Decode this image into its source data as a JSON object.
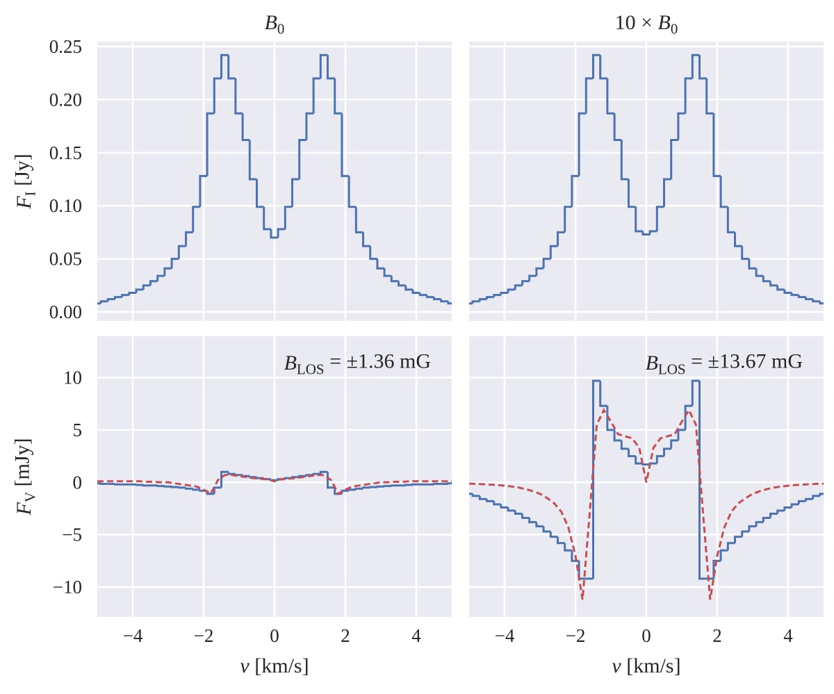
{
  "chart_data": [
    {
      "type": "line",
      "title": [
        {
          "text": "B",
          "italic": true
        },
        {
          "text": "0",
          "sub": true
        }
      ],
      "ylabel": [
        {
          "text": "F",
          "italic": true
        },
        {
          "text": "I",
          "sub": true
        },
        {
          "text": " [Jy]"
        }
      ],
      "x": [
        -5,
        -4.8,
        -4.6,
        -4.4,
        -4.2,
        -4,
        -3.8,
        -3.6,
        -3.4,
        -3.2,
        -3,
        -2.8,
        -2.6,
        -2.4,
        -2.2,
        -2,
        -1.8,
        -1.6,
        -1.4,
        -1.2,
        -1,
        -0.8,
        -0.6,
        -0.4,
        -0.2,
        0,
        0.2,
        0.4,
        0.6,
        0.8,
        1,
        1.2,
        1.4,
        1.6,
        1.8,
        2,
        2.2,
        2.4,
        2.6,
        2.8,
        3,
        3.2,
        3.4,
        3.6,
        3.8,
        4,
        4.2,
        4.4,
        4.6,
        4.8,
        5
      ],
      "series": [
        {
          "color": "#4c72b0",
          "drawstyle": "steps-mid",
          "linestyle": "solid",
          "values": [
            0.008,
            0.01,
            0.012,
            0.014,
            0.016,
            0.018,
            0.021,
            0.025,
            0.029,
            0.034,
            0.041,
            0.05,
            0.062,
            0.075,
            0.099,
            0.128,
            0.187,
            0.22,
            0.242,
            0.22,
            0.187,
            0.162,
            0.125,
            0.099,
            0.078,
            0.07,
            0.078,
            0.099,
            0.125,
            0.162,
            0.187,
            0.22,
            0.242,
            0.22,
            0.187,
            0.128,
            0.099,
            0.075,
            0.062,
            0.05,
            0.041,
            0.034,
            0.029,
            0.025,
            0.021,
            0.018,
            0.016,
            0.014,
            0.012,
            0.01,
            0.008
          ]
        }
      ],
      "xlim": [
        -5,
        5
      ],
      "ylim": [
        -0.0085,
        0.2546
      ],
      "xticks": [
        {
          "value": -4,
          "label": "−4"
        },
        {
          "value": -2,
          "label": "−2"
        },
        0,
        2,
        4
      ],
      "yticks": [
        {
          "value": 0,
          "label": "0.00"
        },
        0.05,
        {
          "value": 0.1,
          "label": "0.10"
        },
        0.15,
        {
          "value": 0.2,
          "label": "0.20"
        },
        0.25
      ],
      "show_xticklabels": false,
      "show_yticklabels": true,
      "grid": true
    },
    {
      "type": "line",
      "title": [
        {
          "text": "10 × "
        },
        {
          "text": "B",
          "italic": true
        },
        {
          "text": "0",
          "sub": true
        }
      ],
      "x": [
        -5,
        -4.8,
        -4.6,
        -4.4,
        -4.2,
        -4,
        -3.8,
        -3.6,
        -3.4,
        -3.2,
        -3,
        -2.8,
        -2.6,
        -2.4,
        -2.2,
        -2,
        -1.8,
        -1.6,
        -1.4,
        -1.2,
        -1,
        -0.8,
        -0.6,
        -0.4,
        -0.2,
        0,
        0.2,
        0.4,
        0.6,
        0.8,
        1,
        1.2,
        1.4,
        1.6,
        1.8,
        2,
        2.2,
        2.4,
        2.6,
        2.8,
        3,
        3.2,
        3.4,
        3.6,
        3.8,
        4,
        4.2,
        4.4,
        4.6,
        4.8,
        5
      ],
      "series": [
        {
          "color": "#4c72b0",
          "drawstyle": "steps-mid",
          "linestyle": "solid",
          "values": [
            0.008,
            0.01,
            0.012,
            0.014,
            0.016,
            0.018,
            0.021,
            0.025,
            0.029,
            0.034,
            0.041,
            0.05,
            0.062,
            0.075,
            0.099,
            0.128,
            0.187,
            0.22,
            0.242,
            0.22,
            0.187,
            0.162,
            0.125,
            0.099,
            0.076,
            0.073,
            0.076,
            0.099,
            0.125,
            0.162,
            0.187,
            0.22,
            0.242,
            0.22,
            0.187,
            0.128,
            0.099,
            0.075,
            0.062,
            0.05,
            0.041,
            0.034,
            0.029,
            0.025,
            0.021,
            0.018,
            0.016,
            0.014,
            0.012,
            0.01,
            0.008
          ]
        }
      ],
      "xlim": [
        -5,
        5
      ],
      "ylim": [
        -0.0085,
        0.2546
      ],
      "xticks": [
        {
          "value": -4,
          "label": "−4"
        },
        {
          "value": -2,
          "label": "−2"
        },
        0,
        2,
        4
      ],
      "yticks": [
        {
          "value": 0,
          "label": "0.00"
        },
        0.05,
        {
          "value": 0.1,
          "label": "0.10"
        },
        0.15,
        {
          "value": 0.2,
          "label": "0.20"
        },
        0.25
      ],
      "show_xticklabels": false,
      "show_yticklabels": false,
      "grid": true
    },
    {
      "type": "line",
      "ylabel": [
        {
          "text": "F",
          "italic": true
        },
        {
          "text": "V",
          "sub": true
        },
        {
          "text": " [mJy]"
        }
      ],
      "xlabel": [
        {
          "text": "v",
          "italic": true
        },
        {
          "text": " [km/s]"
        }
      ],
      "annotation": [
        {
          "text": "B",
          "italic": true
        },
        {
          "text": "LOS",
          "sub": true
        },
        {
          "text": " = ±1.36 mG"
        }
      ],
      "x": [
        -5,
        -4.8,
        -4.6,
        -4.4,
        -4.2,
        -4,
        -3.8,
        -3.6,
        -3.4,
        -3.2,
        -3,
        -2.8,
        -2.6,
        -2.4,
        -2.2,
        -2,
        -1.8,
        -1.6,
        -1.4,
        -1.2,
        -1,
        -0.8,
        -0.6,
        -0.4,
        -0.2,
        0,
        0.2,
        0.4,
        0.6,
        0.8,
        1,
        1.2,
        1.4,
        1.6,
        1.8,
        2,
        2.2,
        2.4,
        2.6,
        2.8,
        3,
        3.2,
        3.4,
        3.6,
        3.8,
        4,
        4.2,
        4.4,
        4.6,
        4.8,
        5
      ],
      "series": [
        {
          "color": "#4c72b0",
          "drawstyle": "steps-mid",
          "linestyle": "solid",
          "values": [
            -0.1,
            -0.15,
            -0.15,
            -0.2,
            -0.2,
            -0.2,
            -0.25,
            -0.3,
            -0.3,
            -0.35,
            -0.4,
            -0.45,
            -0.5,
            -0.6,
            -0.7,
            -0.8,
            -1.1,
            -0.5,
            1.0,
            0.8,
            0.7,
            0.6,
            0.5,
            0.4,
            0.3,
            0.2,
            0.3,
            0.4,
            0.5,
            0.6,
            0.7,
            0.8,
            1.0,
            -0.5,
            -1.1,
            -0.8,
            -0.7,
            -0.6,
            -0.5,
            -0.45,
            -0.4,
            -0.35,
            -0.3,
            -0.3,
            -0.25,
            -0.2,
            -0.2,
            -0.2,
            -0.15,
            -0.15,
            -0.1
          ]
        },
        {
          "color": "#c44e52",
          "drawstyle": "default",
          "linestyle": "dashed",
          "values": [
            0.1,
            0.1,
            0.1,
            0.1,
            0.1,
            0.1,
            0.1,
            0.05,
            0.05,
            0,
            0,
            -0.1,
            -0.2,
            -0.3,
            -0.4,
            -0.7,
            -1.1,
            0.2,
            0.7,
            0.7,
            0.6,
            0.5,
            0.4,
            0.35,
            0.3,
            0.1,
            0.3,
            0.35,
            0.4,
            0.5,
            0.6,
            0.7,
            0.7,
            0.2,
            -1.1,
            -0.7,
            -0.4,
            -0.3,
            -0.2,
            -0.1,
            0,
            0,
            0.05,
            0.05,
            0.1,
            0.1,
            0.1,
            0.1,
            0.1,
            0.1,
            0.1
          ]
        }
      ],
      "xlim": [
        -5,
        5
      ],
      "ylim": [
        -12.85,
        13.95
      ],
      "xticks": [
        {
          "value": -4,
          "label": "−4"
        },
        {
          "value": -2,
          "label": "−2"
        },
        0,
        2,
        4
      ],
      "yticks": [
        {
          "value": -10,
          "label": "−10"
        },
        {
          "value": -5,
          "label": "−5"
        },
        0,
        5,
        10
      ],
      "show_xticklabels": true,
      "show_yticklabels": true,
      "grid": true
    },
    {
      "type": "line",
      "xlabel": [
        {
          "text": "v",
          "italic": true
        },
        {
          "text": " [km/s]"
        }
      ],
      "annotation": [
        {
          "text": "B",
          "italic": true
        },
        {
          "text": "LOS",
          "sub": true
        },
        {
          "text": " = ±13.67 mG"
        }
      ],
      "x": [
        -5,
        -4.8,
        -4.6,
        -4.4,
        -4.2,
        -4,
        -3.8,
        -3.6,
        -3.4,
        -3.2,
        -3,
        -2.8,
        -2.6,
        -2.4,
        -2.2,
        -2,
        -1.8,
        -1.6,
        -1.4,
        -1.2,
        -1,
        -0.8,
        -0.6,
        -0.4,
        -0.2,
        0,
        0.2,
        0.4,
        0.6,
        0.8,
        1,
        1.2,
        1.4,
        1.6,
        1.8,
        2,
        2.2,
        2.4,
        2.6,
        2.8,
        3,
        3.2,
        3.4,
        3.6,
        3.8,
        4,
        4.2,
        4.4,
        4.6,
        4.8,
        5
      ],
      "series": [
        {
          "color": "#4c72b0",
          "drawstyle": "steps-mid",
          "linestyle": "solid",
          "values": [
            -1.1,
            -1.3,
            -1.6,
            -1.8,
            -2.1,
            -2.4,
            -2.7,
            -3.0,
            -3.4,
            -3.8,
            -4.2,
            -4.7,
            -5.2,
            -5.8,
            -6.5,
            -7.5,
            -9.2,
            -9.2,
            9.7,
            7.3,
            5.0,
            4.0,
            3.2,
            2.5,
            1.8,
            1.7,
            1.8,
            2.5,
            3.2,
            4.0,
            5.0,
            7.3,
            9.7,
            -9.2,
            -9.2,
            -7.5,
            -6.5,
            -5.8,
            -5.2,
            -4.7,
            -4.2,
            -3.8,
            -3.4,
            -3.0,
            -2.7,
            -2.4,
            -2.1,
            -1.8,
            -1.6,
            -1.3,
            -1.1
          ]
        },
        {
          "color": "#c44e52",
          "drawstyle": "default",
          "linestyle": "dashed",
          "values": [
            -0.12,
            -0.15,
            -0.18,
            -0.22,
            -0.26,
            -0.32,
            -0.4,
            -0.5,
            -0.65,
            -0.85,
            -1.1,
            -1.5,
            -2.0,
            -2.8,
            -4.3,
            -7.0,
            -11.2,
            -3.0,
            5.5,
            6.9,
            5.8,
            4.6,
            4.4,
            4.2,
            3.3,
            0,
            3.3,
            4.2,
            4.4,
            4.6,
            5.8,
            6.9,
            5.5,
            -3.0,
            -11.2,
            -7.0,
            -4.3,
            -2.8,
            -2.0,
            -1.5,
            -1.1,
            -0.85,
            -0.65,
            -0.5,
            -0.4,
            -0.32,
            -0.26,
            -0.22,
            -0.18,
            -0.15,
            -0.12
          ]
        }
      ],
      "xlim": [
        -5,
        5
      ],
      "ylim": [
        -12.85,
        13.95
      ],
      "xticks": [
        {
          "value": -4,
          "label": "−4"
        },
        {
          "value": -2,
          "label": "−2"
        },
        0,
        2,
        4
      ],
      "yticks": [
        {
          "value": -10,
          "label": "−10"
        },
        {
          "value": -5,
          "label": "−5"
        },
        0,
        5,
        10
      ],
      "show_xticklabels": true,
      "show_yticklabels": false,
      "grid": true
    }
  ]
}
